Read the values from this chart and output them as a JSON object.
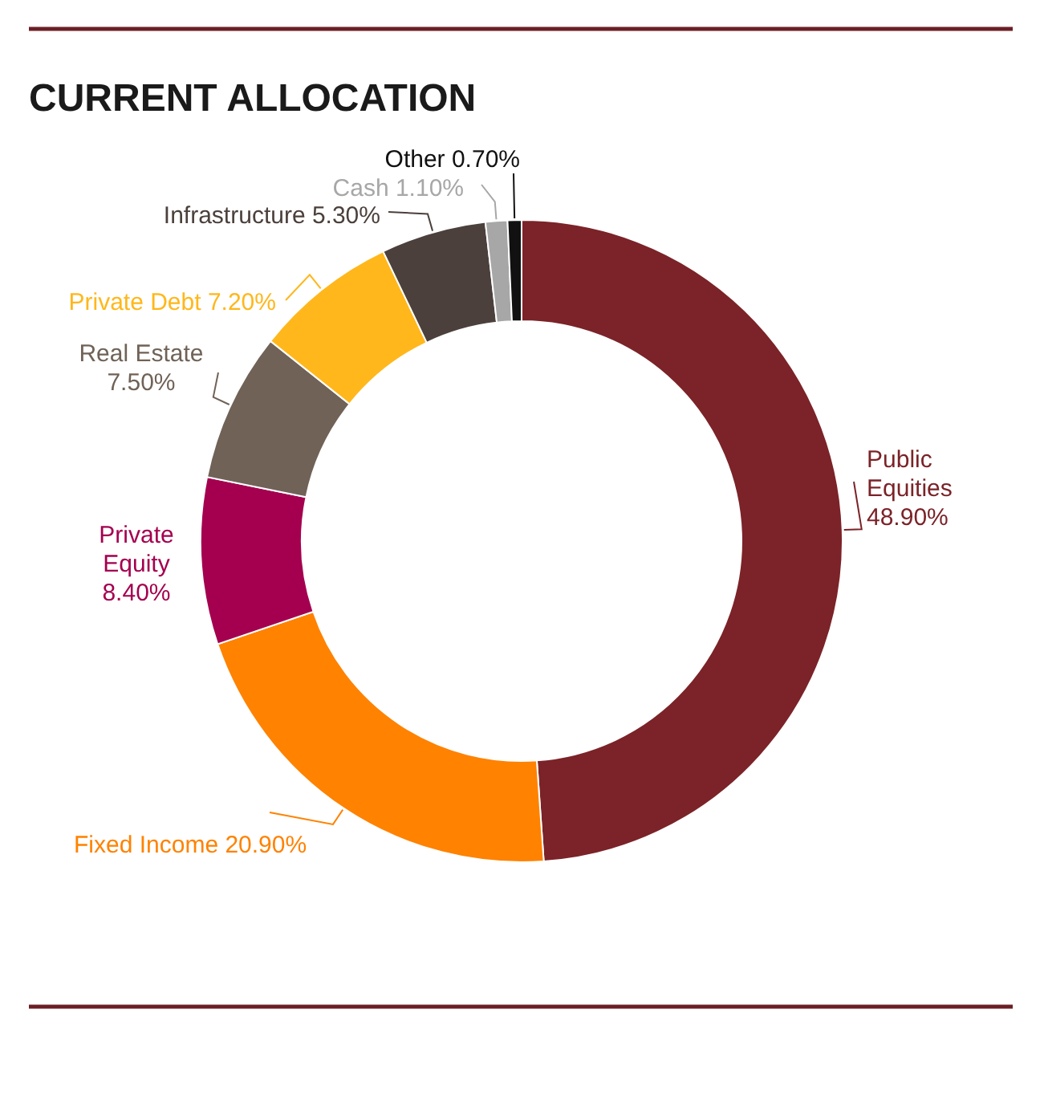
{
  "chart_data": {
    "type": "donut",
    "title": "CURRENT ALLOCATION",
    "categories": [
      "Public Equities",
      "Fixed Income",
      "Private Equity",
      "Real Estate",
      "Private Debt",
      "Infrastructure",
      "Cash",
      "Other"
    ],
    "values": [
      48.9,
      20.9,
      8.4,
      7.5,
      7.2,
      5.3,
      1.1,
      0.7
    ],
    "colors": [
      "#7b2328",
      "#ff8200",
      "#a4004f",
      "#706257",
      "#ffb71b",
      "#4b403c",
      "#a7a7a7",
      "#111111"
    ],
    "value_labels": [
      "48.90%",
      "20.90%",
      "8.40%",
      "7.50%",
      "7.20%",
      "5.30%",
      "1.10%",
      "0.70%"
    ]
  }
}
